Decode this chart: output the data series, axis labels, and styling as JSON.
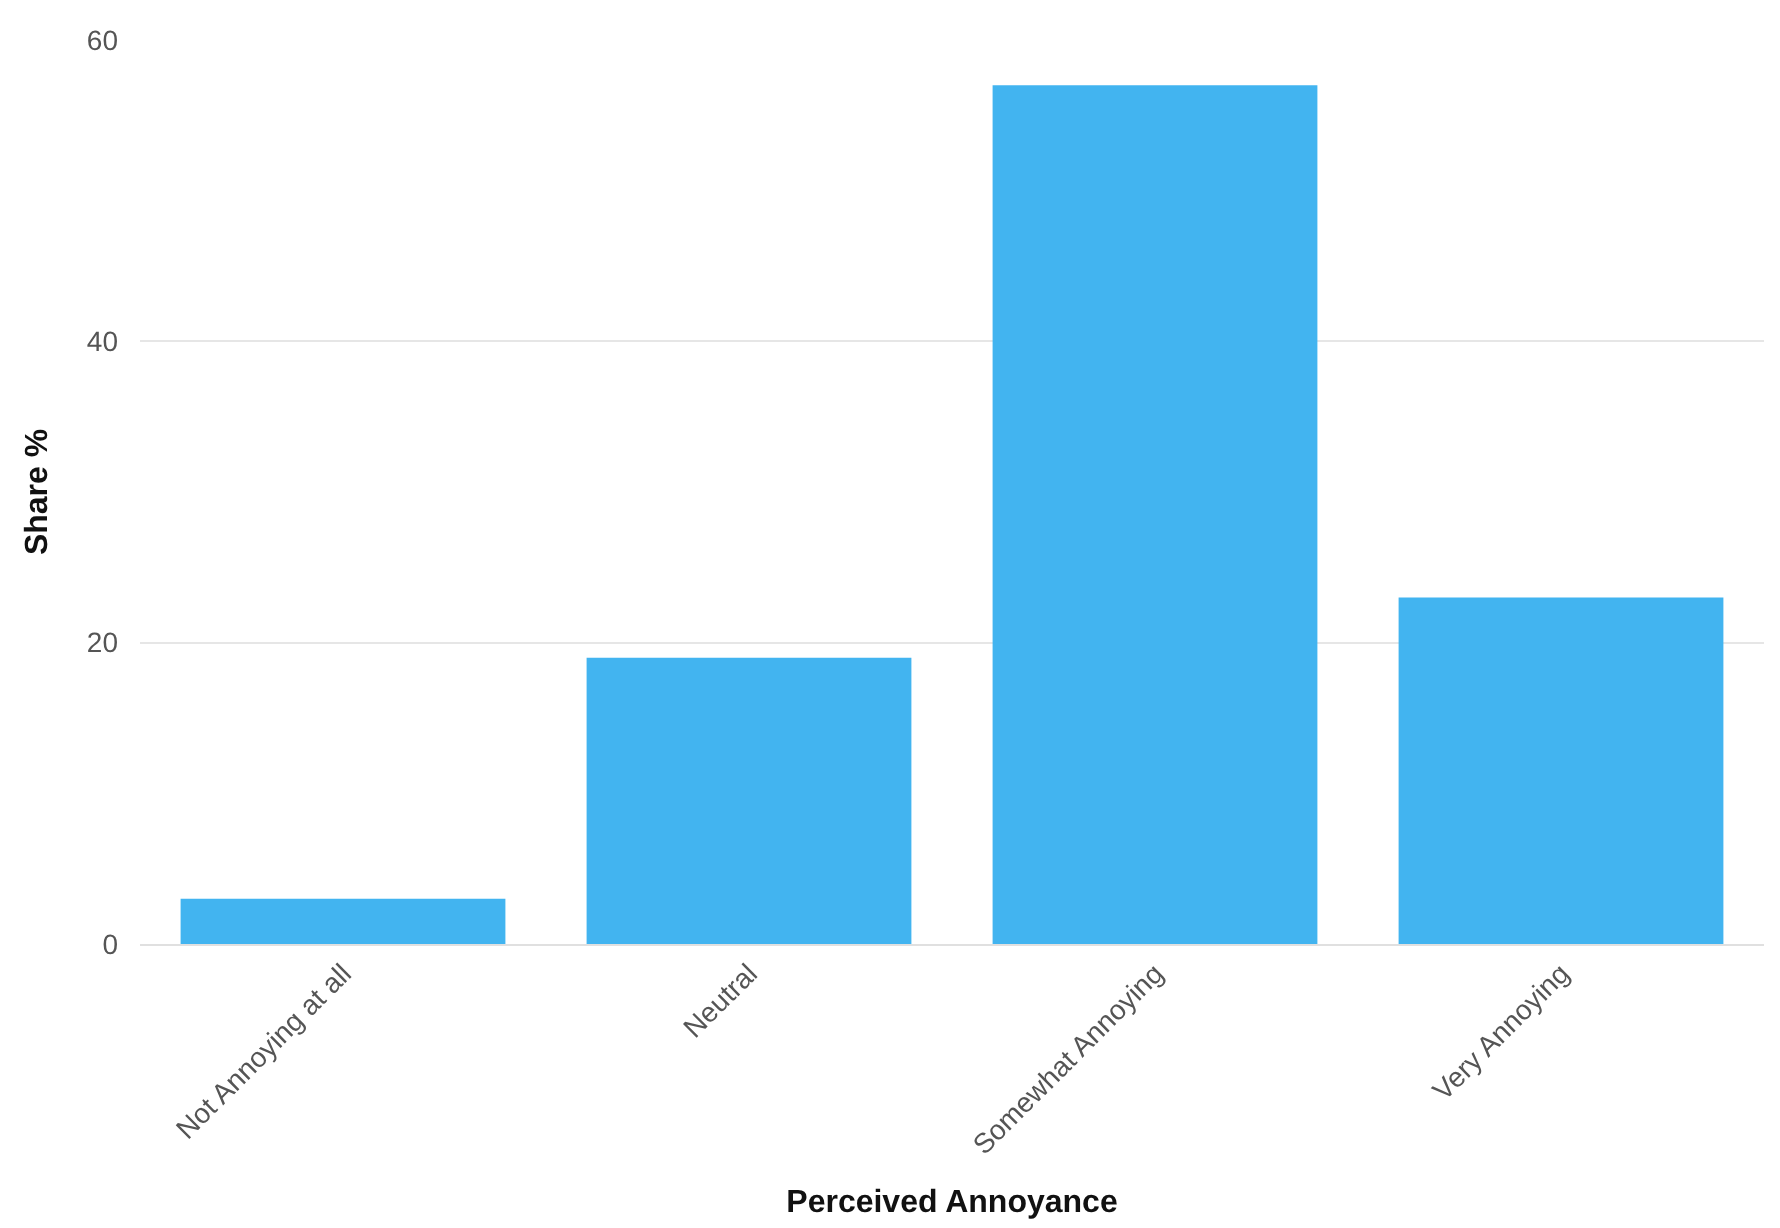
{
  "chart_data": {
    "type": "bar",
    "xlabel": "Perceived Annoyance",
    "ylabel": "Share %",
    "categories": [
      "Not Annoying at all",
      "Neutral",
      "Somewhat Annoying",
      "Very Annoying"
    ],
    "values": [
      3,
      19,
      57,
      23
    ],
    "color": "#42b4f0",
    "ylim": [
      0,
      60
    ],
    "yticks": [
      0,
      20,
      40,
      60
    ],
    "grid": "y"
  }
}
